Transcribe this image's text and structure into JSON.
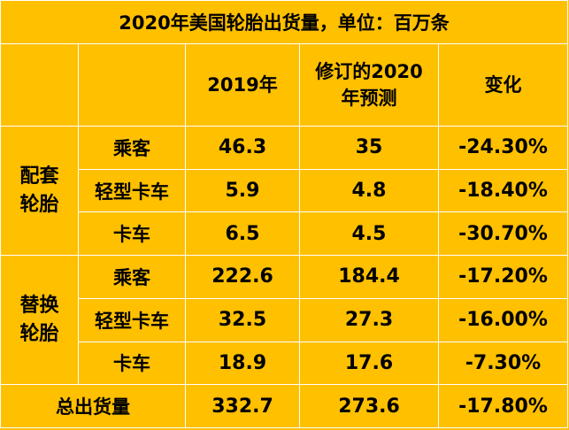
{
  "title": "2020年美国轮胎出货量，单位：百万条",
  "headers": {
    "col1": "",
    "col2": "",
    "col3": "2019年",
    "col4_line1": "修订的2020",
    "col4_line2": "年预测",
    "col5": "变化"
  },
  "groups": [
    {
      "label_line1": "配套",
      "label_line2": "轮胎",
      "rows": [
        {
          "type": "乘客",
          "y2019": "46.3",
          "y2020": "35",
          "change": "-24.30%"
        },
        {
          "type": "轻型卡车",
          "y2019": "5.9",
          "y2020": "4.8",
          "change": "-18.40%"
        },
        {
          "type": "卡车",
          "y2019": "6.5",
          "y2020": "4.5",
          "change": "-30.70%"
        }
      ]
    },
    {
      "label_line1": "替换",
      "label_line2": "轮胎",
      "rows": [
        {
          "type": "乘客",
          "y2019": "222.6",
          "y2020": "184.4",
          "change": "-17.20%"
        },
        {
          "type": "轻型卡车",
          "y2019": "32.5",
          "y2020": "27.3",
          "change": "-16.00%"
        },
        {
          "type": "卡车",
          "y2019": "18.9",
          "y2020": "17.6",
          "change": "-7.30%"
        }
      ]
    }
  ],
  "total": {
    "label": "总出货量",
    "y2019": "332.7",
    "y2020": "273.6",
    "change": "-17.80%"
  },
  "colors": {
    "background": "#FFC000",
    "grid": "#FFFFFF",
    "text": "#000000"
  }
}
